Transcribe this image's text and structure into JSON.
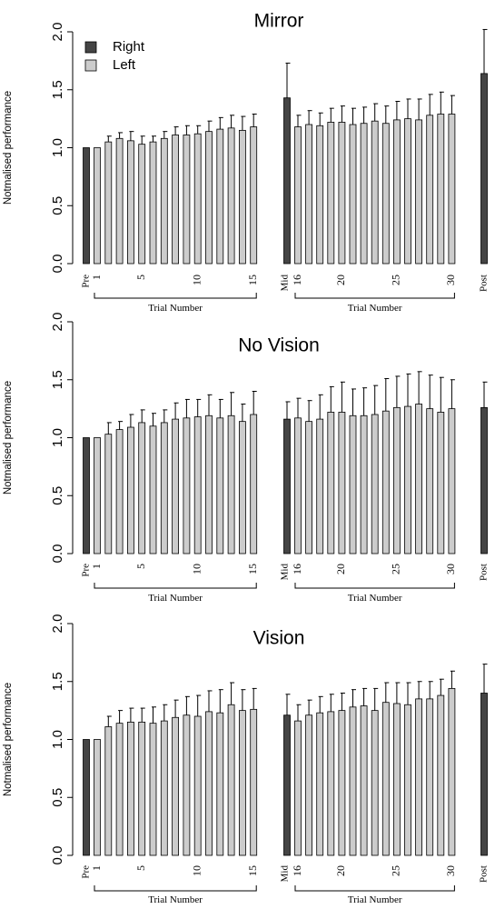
{
  "colors": {
    "right": "#444444",
    "left": "#cccccc",
    "stroke": "#000000"
  },
  "legend": [
    {
      "label": "Right",
      "color": "#444444"
    },
    {
      "label": "Left",
      "color": "#cccccc"
    }
  ],
  "chart_data": [
    {
      "type": "bar",
      "title": "Mirror",
      "ylabel": "Notmalised performance",
      "ylim": [
        0,
        2
      ],
      "yticks": [
        "0.0",
        "0.5",
        "1.0",
        "1.5",
        "2.0"
      ],
      "legend_placement": "top-left",
      "group_label": "Trial Number",
      "pre": {
        "label": "Pre",
        "hand": "Right",
        "value": 1.0,
        "error": 0
      },
      "trials_1_15": {
        "hand": "Left",
        "trials": [
          1,
          2,
          3,
          4,
          5,
          6,
          7,
          8,
          9,
          10,
          11,
          12,
          13,
          14,
          15
        ],
        "values": [
          1.0,
          1.05,
          1.08,
          1.06,
          1.03,
          1.05,
          1.08,
          1.11,
          1.11,
          1.12,
          1.14,
          1.16,
          1.17,
          1.15,
          1.18
        ],
        "errors": [
          0.0,
          0.05,
          0.05,
          0.08,
          0.07,
          0.05,
          0.06,
          0.07,
          0.08,
          0.07,
          0.09,
          0.1,
          0.11,
          0.12,
          0.11
        ],
        "tick_labels": [
          "1",
          "5",
          "10",
          "15"
        ]
      },
      "mid": {
        "label": "Mid",
        "hand": "Right",
        "value": 1.43,
        "error": 0.3
      },
      "trials_16_30": {
        "hand": "Left",
        "trials": [
          16,
          17,
          18,
          19,
          20,
          21,
          22,
          23,
          24,
          25,
          26,
          27,
          28,
          29,
          30
        ],
        "values": [
          1.18,
          1.2,
          1.19,
          1.22,
          1.22,
          1.2,
          1.21,
          1.23,
          1.21,
          1.24,
          1.25,
          1.24,
          1.28,
          1.29,
          1.29
        ],
        "errors": [
          0.1,
          0.12,
          0.11,
          0.12,
          0.14,
          0.14,
          0.14,
          0.15,
          0.15,
          0.16,
          0.17,
          0.18,
          0.18,
          0.19,
          0.16
        ],
        "tick_labels": [
          "16",
          "20",
          "25",
          "30"
        ]
      },
      "post": {
        "label": "Post",
        "hand": "Right",
        "value": 1.64,
        "error": 0.38
      }
    },
    {
      "type": "bar",
      "title": "No Vision",
      "ylabel": "Notmalised performance",
      "ylim": [
        0,
        2
      ],
      "yticks": [
        "0.0",
        "0.5",
        "1.0",
        "1.5",
        "2.0"
      ],
      "group_label": "Trial Number",
      "pre": {
        "label": "Pre",
        "hand": "Right",
        "value": 1.0,
        "error": 0
      },
      "trials_1_15": {
        "hand": "Left",
        "trials": [
          1,
          2,
          3,
          4,
          5,
          6,
          7,
          8,
          9,
          10,
          11,
          12,
          13,
          14,
          15
        ],
        "values": [
          1.0,
          1.03,
          1.07,
          1.09,
          1.13,
          1.1,
          1.13,
          1.16,
          1.17,
          1.18,
          1.19,
          1.17,
          1.19,
          1.14,
          1.2
        ],
        "errors": [
          0.0,
          0.1,
          0.07,
          0.11,
          0.11,
          0.11,
          0.11,
          0.14,
          0.16,
          0.15,
          0.18,
          0.16,
          0.2,
          0.15,
          0.2
        ],
        "tick_labels": [
          "1",
          "5",
          "10",
          "15"
        ]
      },
      "mid": {
        "label": "Mid",
        "hand": "Right",
        "value": 1.16,
        "error": 0.15
      },
      "trials_16_30": {
        "hand": "Left",
        "trials": [
          16,
          17,
          18,
          19,
          20,
          21,
          22,
          23,
          24,
          25,
          26,
          27,
          28,
          29,
          30
        ],
        "values": [
          1.17,
          1.14,
          1.16,
          1.22,
          1.22,
          1.19,
          1.19,
          1.2,
          1.23,
          1.26,
          1.27,
          1.29,
          1.25,
          1.22,
          1.25
        ],
        "errors": [
          0.17,
          0.18,
          0.21,
          0.22,
          0.26,
          0.23,
          0.24,
          0.25,
          0.28,
          0.27,
          0.28,
          0.28,
          0.29,
          0.3,
          0.25
        ],
        "tick_labels": [
          "16",
          "20",
          "25",
          "30"
        ]
      },
      "post": {
        "label": "Post",
        "hand": "Right",
        "value": 1.26,
        "error": 0.22
      }
    },
    {
      "type": "bar",
      "title": "Vision",
      "ylabel": "Notmalised performance",
      "ylim": [
        0,
        2
      ],
      "yticks": [
        "0.0",
        "0.5",
        "1.0",
        "1.5",
        "2.0"
      ],
      "group_label": "Trial Number",
      "pre": {
        "label": "Pre",
        "hand": "Right",
        "value": 1.0,
        "error": 0
      },
      "trials_1_15": {
        "hand": "Left",
        "trials": [
          1,
          2,
          3,
          4,
          5,
          6,
          7,
          8,
          9,
          10,
          11,
          12,
          13,
          14,
          15
        ],
        "values": [
          1.0,
          1.11,
          1.14,
          1.15,
          1.15,
          1.14,
          1.16,
          1.19,
          1.21,
          1.2,
          1.24,
          1.23,
          1.3,
          1.25,
          1.26
        ],
        "errors": [
          0.0,
          0.09,
          0.11,
          0.12,
          0.12,
          0.14,
          0.14,
          0.15,
          0.16,
          0.18,
          0.18,
          0.2,
          0.19,
          0.18,
          0.18
        ],
        "tick_labels": [
          "1",
          "5",
          "10",
          "15"
        ]
      },
      "mid": {
        "label": "Mid",
        "hand": "Right",
        "value": 1.21,
        "error": 0.18
      },
      "trials_16_30": {
        "hand": "Left",
        "trials": [
          16,
          17,
          18,
          19,
          20,
          21,
          22,
          23,
          24,
          25,
          26,
          27,
          28,
          29,
          30
        ],
        "values": [
          1.16,
          1.21,
          1.23,
          1.24,
          1.25,
          1.28,
          1.29,
          1.25,
          1.32,
          1.31,
          1.3,
          1.35,
          1.35,
          1.38,
          1.44
        ],
        "errors": [
          0.14,
          0.13,
          0.14,
          0.15,
          0.15,
          0.15,
          0.15,
          0.19,
          0.17,
          0.18,
          0.19,
          0.15,
          0.15,
          0.14,
          0.15
        ],
        "tick_labels": [
          "16",
          "20",
          "25",
          "30"
        ]
      },
      "post": {
        "label": "Post",
        "hand": "Right",
        "value": 1.4,
        "error": 0.25
      }
    }
  ]
}
